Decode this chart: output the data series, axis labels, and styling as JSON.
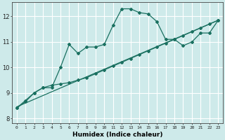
{
  "xlabel": "Humidex (Indice chaleur)",
  "bg_color": "#ceeaea",
  "grid_color": "#ffffff",
  "line_color": "#1a7060",
  "xlim": [
    -0.5,
    23.5
  ],
  "ylim": [
    7.8,
    12.55
  ],
  "yticks": [
    8,
    9,
    10,
    11,
    12
  ],
  "series1_x": [
    0,
    1,
    2,
    3,
    4,
    5,
    6,
    7,
    8,
    9,
    10,
    11,
    12,
    13,
    14,
    15,
    16,
    17,
    18,
    19,
    20,
    21,
    22,
    23
  ],
  "series1_y": [
    8.4,
    8.7,
    9.0,
    9.2,
    9.2,
    10.0,
    10.9,
    10.55,
    10.8,
    10.8,
    10.9,
    11.65,
    12.3,
    12.3,
    12.15,
    12.1,
    11.8,
    11.1,
    11.1,
    10.85,
    11.0,
    11.35,
    11.35,
    11.85
  ],
  "series2_x": [
    0,
    1,
    2,
    3,
    4,
    5,
    6,
    7,
    8,
    9,
    10,
    11,
    12,
    13,
    14,
    15,
    16,
    17,
    18,
    19,
    20,
    21,
    22,
    23
  ],
  "series2_y": [
    8.4,
    8.65,
    9.0,
    9.2,
    9.3,
    9.35,
    9.4,
    9.5,
    9.6,
    9.75,
    9.9,
    10.05,
    10.2,
    10.35,
    10.5,
    10.65,
    10.8,
    10.95,
    11.1,
    11.25,
    11.4,
    11.55,
    11.7,
    11.85
  ],
  "series3_x": [
    0,
    23
  ],
  "series3_y": [
    8.45,
    11.85
  ]
}
